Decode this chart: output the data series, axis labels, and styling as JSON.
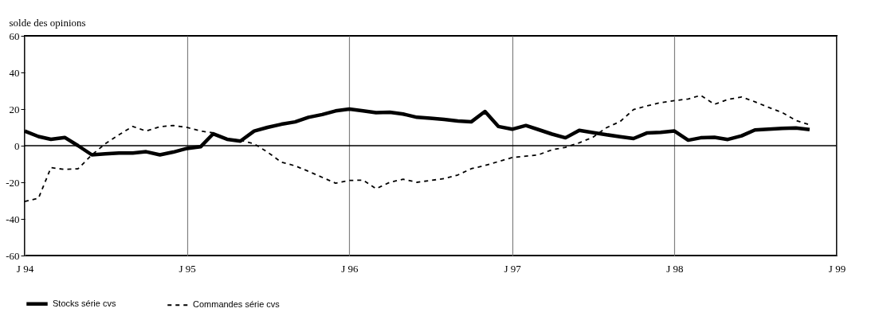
{
  "chart_data": {
    "type": "line",
    "ylabel": "solde des opinions",
    "x": [
      "1994-01",
      "1994-02",
      "1994-03",
      "1994-04",
      "1994-05",
      "1994-06",
      "1994-07",
      "1994-08",
      "1994-09",
      "1994-10",
      "1994-11",
      "1994-12",
      "1995-01",
      "1995-02",
      "1995-03",
      "1995-04",
      "1995-05",
      "1995-06",
      "1995-07",
      "1995-08",
      "1995-09",
      "1995-10",
      "1995-11",
      "1995-12",
      "1996-01",
      "1996-02",
      "1996-03",
      "1996-04",
      "1996-05",
      "1996-06",
      "1996-07",
      "1996-08",
      "1996-09",
      "1996-10",
      "1996-11",
      "1996-12",
      "1997-01",
      "1997-02",
      "1997-03",
      "1997-04",
      "1997-05",
      "1997-06",
      "1997-07",
      "1997-08",
      "1997-09",
      "1997-10",
      "1997-11",
      "1997-12",
      "1998-01",
      "1998-02",
      "1998-03",
      "1998-04",
      "1998-05",
      "1998-06",
      "1998-07",
      "1998-08",
      "1998-09",
      "1998-10",
      "1998-11"
    ],
    "series": [
      {
        "name": "Stocks série cvs",
        "color": "#000000",
        "line_style": "solid",
        "values": [
          8,
          5,
          3.5,
          4.5,
          0,
          -5,
          -4.5,
          -4,
          -4,
          -3.3,
          -5,
          -3.5,
          -1.5,
          -0.5,
          6.5,
          3.5,
          2.5,
          8,
          10,
          11.7,
          13,
          15.5,
          17,
          19,
          20,
          19,
          18,
          18.3,
          17.3,
          15.5,
          15,
          14.3,
          13.5,
          13,
          18.7,
          10.5,
          9,
          11,
          8.8,
          6.3,
          4.3,
          8.4,
          7.2,
          6,
          4.9,
          3.9,
          7,
          7.3,
          8,
          3,
          4.3,
          4.6,
          3.4,
          5.4,
          8.6,
          9,
          9.5,
          9.7,
          8.8
        ]
      },
      {
        "name": "Commandes série cvs",
        "color": "#000000",
        "line_style": "dashed",
        "values": [
          -30.5,
          -28.7,
          -12,
          -13,
          -12.6,
          -5,
          1,
          6,
          10.5,
          8,
          10.4,
          11,
          10,
          8,
          7,
          3.7,
          3,
          1,
          -3.5,
          -9,
          -11,
          -14,
          -17.3,
          -20.5,
          -19,
          -18.8,
          -23.5,
          -20,
          -18.3,
          -20,
          -19,
          -18,
          -16,
          -12.6,
          -10.8,
          -8.7,
          -6.5,
          -5.7,
          -5,
          -2.2,
          -0.9,
          1.6,
          4.5,
          9.8,
          13.2,
          19.7,
          21.8,
          23.5,
          24.6,
          25.5,
          27.5,
          22.6,
          25.2,
          26.6,
          24,
          20.9,
          18,
          13.8,
          11.4
        ]
      }
    ],
    "xlim": [
      "1994-01",
      "1999-01"
    ],
    "xticks": [
      {
        "value": "1994-01",
        "label": "J 94"
      },
      {
        "value": "1995-01",
        "label": "J 95"
      },
      {
        "value": "1996-01",
        "label": "J 96"
      },
      {
        "value": "1997-01",
        "label": "J 97"
      },
      {
        "value": "1998-01",
        "label": "J 98"
      },
      {
        "value": "1999-01",
        "label": "J 99"
      }
    ],
    "ylim": [
      -60,
      60
    ],
    "yticks": [
      -60,
      -40,
      -20,
      0,
      20,
      40,
      60
    ],
    "ref_lines": [
      {
        "axis": "y",
        "value": 0,
        "color": "#000000"
      }
    ],
    "grid": "x",
    "legend": "bottom",
    "marker": "none"
  }
}
